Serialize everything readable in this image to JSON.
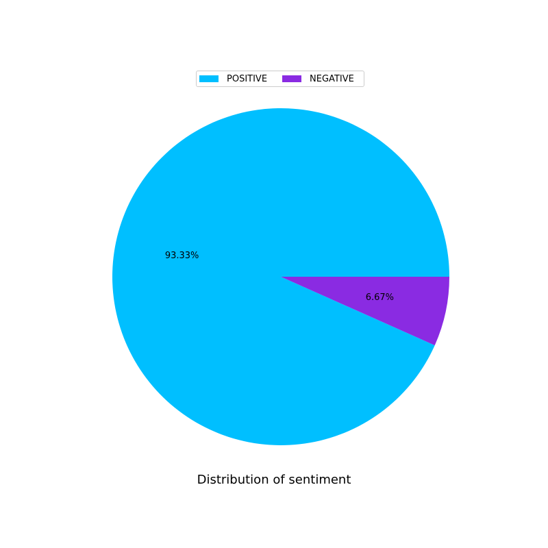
{
  "chart_data": {
    "type": "pie",
    "title": "Distribution of sentiment",
    "start_angle_deg": 0,
    "direction": "counterclockwise",
    "legend_position": "top-center",
    "slices": [
      {
        "label": "POSITIVE",
        "value": 93.33,
        "pct_label": "93.33%",
        "color": "#00BFFF"
      },
      {
        "label": "NEGATIVE",
        "value": 6.67,
        "pct_label": "6.67%",
        "color": "#8A2BE2"
      }
    ]
  }
}
